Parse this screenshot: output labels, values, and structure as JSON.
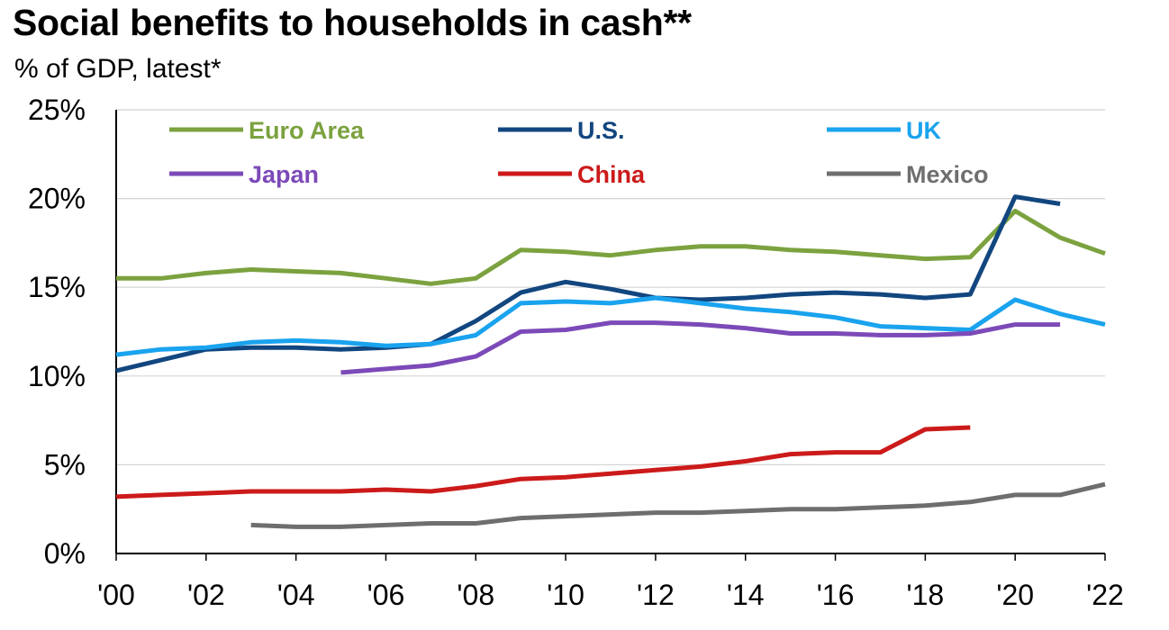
{
  "title": "Social benefits to households in cash**",
  "subtitle": "% of GDP, latest*",
  "chart_data": {
    "type": "line",
    "title": "Social benefits to households in cash**",
    "subtitle": "% of GDP, latest*",
    "xlabel": "",
    "ylabel": "",
    "x_tick_labels": [
      "'00",
      "'02",
      "'04",
      "'06",
      "'08",
      "'10",
      "'12",
      "'14",
      "'16",
      "'18",
      "'20",
      "'22"
    ],
    "y_tick_labels": [
      "0%",
      "5%",
      "10%",
      "15%",
      "20%",
      "25%"
    ],
    "xlim": [
      2000,
      2022
    ],
    "ylim": [
      0,
      25
    ],
    "grid": "horizontal",
    "legend": "top, two rows",
    "series": [
      {
        "name": "Euro Area",
        "color": "#7ba23f",
        "x": [
          2000,
          2001,
          2002,
          2003,
          2004,
          2005,
          2006,
          2007,
          2008,
          2009,
          2010,
          2011,
          2012,
          2013,
          2014,
          2015,
          2016,
          2017,
          2018,
          2019,
          2020,
          2021,
          2022
        ],
        "y": [
          15.5,
          15.5,
          15.8,
          16.0,
          15.9,
          15.8,
          15.5,
          15.2,
          15.5,
          17.1,
          17.0,
          16.8,
          17.1,
          17.3,
          17.3,
          17.1,
          17.0,
          16.8,
          16.6,
          16.7,
          19.3,
          17.8,
          16.9
        ]
      },
      {
        "name": "U.S.",
        "color": "#12467f",
        "x": [
          2000,
          2001,
          2002,
          2003,
          2004,
          2005,
          2006,
          2007,
          2008,
          2009,
          2010,
          2011,
          2012,
          2013,
          2014,
          2015,
          2016,
          2017,
          2018,
          2019,
          2020,
          2021
        ],
        "y": [
          10.3,
          10.9,
          11.5,
          11.6,
          11.6,
          11.5,
          11.6,
          11.8,
          13.1,
          14.7,
          15.3,
          14.9,
          14.4,
          14.3,
          14.4,
          14.6,
          14.7,
          14.6,
          14.4,
          14.6,
          20.1,
          19.7
        ]
      },
      {
        "name": "UK",
        "color": "#1aa3ee",
        "x": [
          2000,
          2001,
          2002,
          2003,
          2004,
          2005,
          2006,
          2007,
          2008,
          2009,
          2010,
          2011,
          2012,
          2013,
          2014,
          2015,
          2016,
          2017,
          2018,
          2019,
          2020,
          2021,
          2022
        ],
        "y": [
          11.2,
          11.5,
          11.6,
          11.9,
          12.0,
          11.9,
          11.7,
          11.8,
          12.3,
          14.1,
          14.2,
          14.1,
          14.4,
          14.1,
          13.8,
          13.6,
          13.3,
          12.8,
          12.7,
          12.6,
          14.3,
          13.5,
          12.9
        ]
      },
      {
        "name": "Japan",
        "color": "#7c4ab8",
        "x": [
          2005,
          2006,
          2007,
          2008,
          2009,
          2010,
          2011,
          2012,
          2013,
          2014,
          2015,
          2016,
          2017,
          2018,
          2019,
          2020,
          2021
        ],
        "y": [
          10.2,
          10.4,
          10.6,
          11.1,
          12.5,
          12.6,
          13.0,
          13.0,
          12.9,
          12.7,
          12.4,
          12.4,
          12.3,
          12.3,
          12.4,
          12.9,
          12.9
        ]
      },
      {
        "name": "China",
        "color": "#cc1a1a",
        "x": [
          2000,
          2001,
          2002,
          2003,
          2004,
          2005,
          2006,
          2007,
          2008,
          2009,
          2010,
          2011,
          2012,
          2013,
          2014,
          2015,
          2016,
          2017,
          2018,
          2019
        ],
        "y": [
          3.2,
          3.3,
          3.4,
          3.5,
          3.5,
          3.5,
          3.6,
          3.5,
          3.8,
          4.2,
          4.3,
          4.5,
          4.7,
          4.9,
          5.2,
          5.6,
          5.7,
          5.7,
          7.0,
          7.1
        ]
      },
      {
        "name": "Mexico",
        "color": "#6e6e6e",
        "x": [
          2003,
          2004,
          2005,
          2006,
          2007,
          2008,
          2009,
          2010,
          2011,
          2012,
          2013,
          2014,
          2015,
          2016,
          2017,
          2018,
          2019,
          2020,
          2021,
          2022
        ],
        "y": [
          1.6,
          1.5,
          1.5,
          1.6,
          1.7,
          1.7,
          2.0,
          2.1,
          2.2,
          2.3,
          2.3,
          2.4,
          2.5,
          2.5,
          2.6,
          2.7,
          2.9,
          3.3,
          3.3,
          3.9
        ]
      }
    ]
  }
}
